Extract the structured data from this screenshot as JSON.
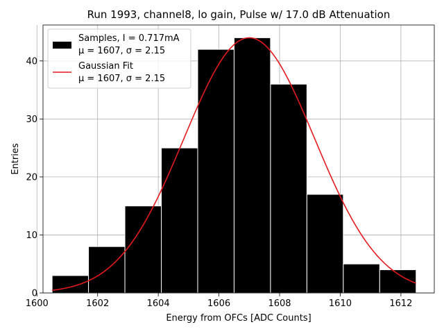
{
  "chart_data": {
    "type": "bar",
    "title": "Run 1993, channel8, lo gain, Pulse w/ 17.0 dB Attenuation",
    "xlabel": "Energy from OFCs [ADC Counts]",
    "ylabel": "Entries",
    "xlim": [
      1600.2,
      1613.1
    ],
    "ylim": [
      0,
      46.2
    ],
    "grid": true,
    "x_ticks": [
      1600,
      1602,
      1604,
      1606,
      1608,
      1610,
      1612
    ],
    "x_tick_labels": [
      "1600",
      "1602",
      "1604",
      "1606",
      "1608",
      "1610",
      "1612"
    ],
    "y_ticks": [
      0,
      10,
      20,
      30,
      40
    ],
    "y_tick_labels": [
      "0",
      "10",
      "20",
      "30",
      "40"
    ],
    "histogram": {
      "name": "Samples",
      "bin_edges": [
        1600.5,
        1601.7,
        1602.9,
        1604.1,
        1605.3,
        1606.5,
        1607.7,
        1608.9,
        1610.1,
        1611.3,
        1612.5
      ],
      "counts": [
        3,
        8,
        15,
        25,
        42,
        44,
        36,
        17,
        5,
        4
      ],
      "color": "#000000",
      "edgecolor": "#ffffff"
    },
    "fit": {
      "name": "Gaussian Fit",
      "type": "line",
      "mu": 1607,
      "sigma": 2.15,
      "amplitude": 44,
      "x_range": [
        1600.5,
        1612.5
      ],
      "color": "#e41a1c"
    },
    "legend": {
      "position": "top-left",
      "entries": [
        {
          "line1": "Samples, I = 0.717mA",
          "line2": "μ = 1607, σ = 2.15",
          "kind": "patch",
          "color": "#000000"
        },
        {
          "line1": "Gaussian Fit",
          "line2": "μ = 1607, σ = 2.15",
          "kind": "line",
          "color": "#e41a1c"
        }
      ]
    }
  }
}
